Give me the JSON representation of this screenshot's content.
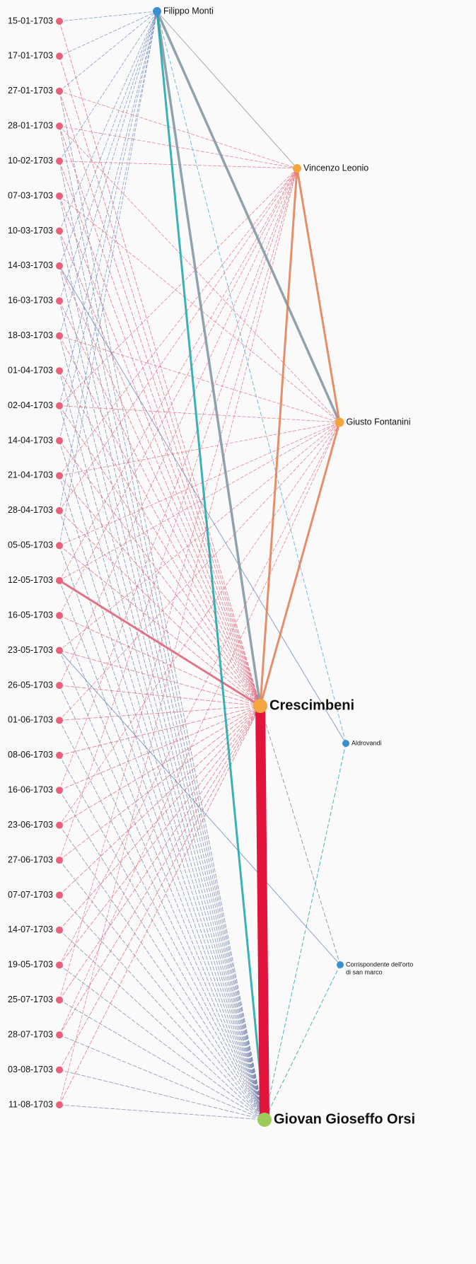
{
  "dates": [
    "15-01-1703",
    "17-01-1703",
    "27-01-1703",
    "28-01-1703",
    "10-02-1703",
    "07-03-1703",
    "10-03-1703",
    "14-03-1703",
    "16-03-1703",
    "18-03-1703",
    "01-04-1703",
    "02-04-1703",
    "14-04-1703",
    "21-04-1703",
    "28-04-1703",
    "05-05-1703",
    "12-05-1703",
    "16-05-1703",
    "23-05-1703",
    "26-05-1703",
    "01-06-1703",
    "08-06-1703",
    "16-06-1703",
    "23-06-1703",
    "27-06-1703",
    "07-07-1703",
    "14-07-1703",
    "19-05-1703",
    "25-07-1703",
    "28-07-1703",
    "03-08-1703",
    "11-08-1703"
  ],
  "people": [
    {
      "label": "Filippo Monti"
    },
    {
      "label": "Vincenzo Leonio"
    },
    {
      "label": "Giusto Fontanini"
    },
    {
      "label": "Crescimbeni"
    },
    {
      "label": "Aldrovandi"
    },
    {
      "label": [
        "Corrispondente dell'orto",
        "di san marco"
      ]
    },
    {
      "label": "Giovan Gioseffo Orsi"
    }
  ]
}
